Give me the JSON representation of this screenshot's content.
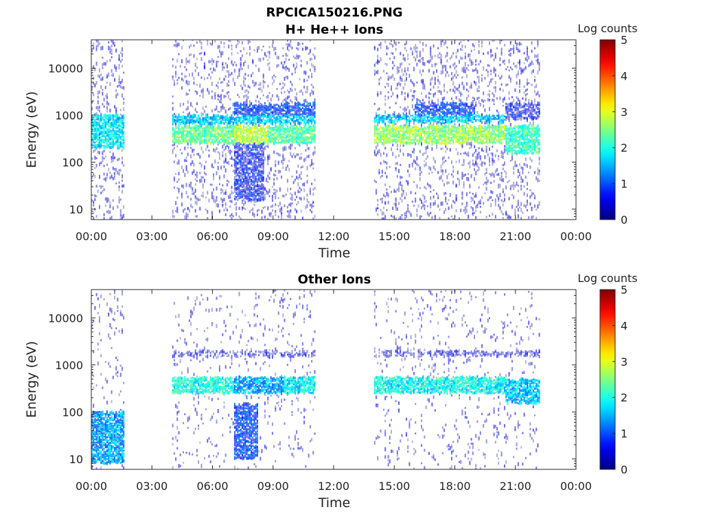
{
  "figure_title": "RPCICA150216.PNG",
  "chart_data": [
    {
      "type": "heatmap",
      "id": "hplus",
      "title": "H+ He++ Ions",
      "xlabel": "Time",
      "ylabel": "Energy (eV)",
      "x_ticks": [
        "00:00",
        "03:00",
        "06:00",
        "09:00",
        "12:00",
        "15:00",
        "18:00",
        "21:00",
        "00:00"
      ],
      "x_range_hours": [
        0,
        24
      ],
      "y_scale": "log",
      "y_ticks": [
        "10",
        "100",
        "1000",
        "10000"
      ],
      "y_range_eV": [
        6,
        40000
      ],
      "grid": false,
      "colorbar": {
        "label": "Log counts",
        "ticks": [
          "0",
          "1",
          "2",
          "3",
          "4",
          "5"
        ],
        "range": [
          0,
          5
        ],
        "colormap": "jet"
      },
      "data_intervals_hours": [
        [
          0.0,
          1.6
        ],
        [
          4.0,
          11.1
        ],
        [
          14.0,
          22.2
        ]
      ],
      "bands": [
        {
          "t": [
            0.0,
            1.6
          ],
          "e": [
            200,
            700
          ],
          "level": 1.8
        },
        {
          "t": [
            0.0,
            1.6
          ],
          "e": [
            700,
            1000
          ],
          "level": 1.7
        },
        {
          "t": [
            4.0,
            7.0
          ],
          "e": [
            250,
            600
          ],
          "level": 2.4
        },
        {
          "t": [
            7.0,
            8.7
          ],
          "e": [
            250,
            600
          ],
          "level": 2.8
        },
        {
          "t": [
            8.7,
            11.1
          ],
          "e": [
            250,
            600
          ],
          "level": 2.3
        },
        {
          "t": [
            4.0,
            11.1
          ],
          "e": [
            650,
            1000
          ],
          "level": 1.6
        },
        {
          "t": [
            7.0,
            11.1
          ],
          "e": [
            1000,
            1800
          ],
          "level": 0.9
        },
        {
          "t": [
            7.0,
            8.5
          ],
          "e": [
            15,
            250
          ],
          "level": 0.6
        },
        {
          "t": [
            14.0,
            20.5
          ],
          "e": [
            250,
            600
          ],
          "level": 2.6
        },
        {
          "t": [
            14.0,
            20.5
          ],
          "e": [
            700,
            1000
          ],
          "level": 1.6
        },
        {
          "t": [
            16.0,
            19.0
          ],
          "e": [
            1000,
            1800
          ],
          "level": 0.9
        },
        {
          "t": [
            20.5,
            22.2
          ],
          "e": [
            150,
            600
          ],
          "level": 2.2
        },
        {
          "t": [
            20.5,
            22.2
          ],
          "e": [
            800,
            1800
          ],
          "level": 0.6
        }
      ]
    },
    {
      "type": "heatmap",
      "id": "other",
      "title": "Other Ions",
      "xlabel": "Time",
      "ylabel": "Energy (eV)",
      "x_ticks": [
        "00:00",
        "03:00",
        "06:00",
        "09:00",
        "12:00",
        "15:00",
        "18:00",
        "21:00",
        "00:00"
      ],
      "x_range_hours": [
        0,
        24
      ],
      "y_scale": "log",
      "y_ticks": [
        "10",
        "100",
        "1000",
        "10000"
      ],
      "y_range_eV": [
        6,
        40000
      ],
      "grid": false,
      "colorbar": {
        "label": "Log counts",
        "ticks": [
          "0",
          "1",
          "2",
          "3",
          "4",
          "5"
        ],
        "range": [
          0,
          5
        ],
        "colormap": "jet"
      },
      "data_intervals_hours": [
        [
          0.0,
          1.6
        ],
        [
          4.0,
          11.1
        ],
        [
          14.0,
          22.2
        ]
      ],
      "bands": [
        {
          "t": [
            0.0,
            1.6
          ],
          "e": [
            8,
            100
          ],
          "level": 1.4
        },
        {
          "t": [
            4.0,
            7.0
          ],
          "e": [
            250,
            550
          ],
          "level": 2.0
        },
        {
          "t": [
            7.0,
            9.5
          ],
          "e": [
            250,
            550
          ],
          "level": 1.4
        },
        {
          "t": [
            9.5,
            11.1
          ],
          "e": [
            250,
            550
          ],
          "level": 1.8
        },
        {
          "t": [
            7.0,
            8.2
          ],
          "e": [
            10,
            150
          ],
          "level": 0.9
        },
        {
          "t": [
            14.0,
            20.5
          ],
          "e": [
            250,
            550
          ],
          "level": 1.9
        },
        {
          "t": [
            20.5,
            22.2
          ],
          "e": [
            150,
            500
          ],
          "level": 1.6
        },
        {
          "t": [
            4.0,
            22.2
          ],
          "e": [
            1500,
            2000
          ],
          "level": 0.3
        }
      ]
    }
  ]
}
